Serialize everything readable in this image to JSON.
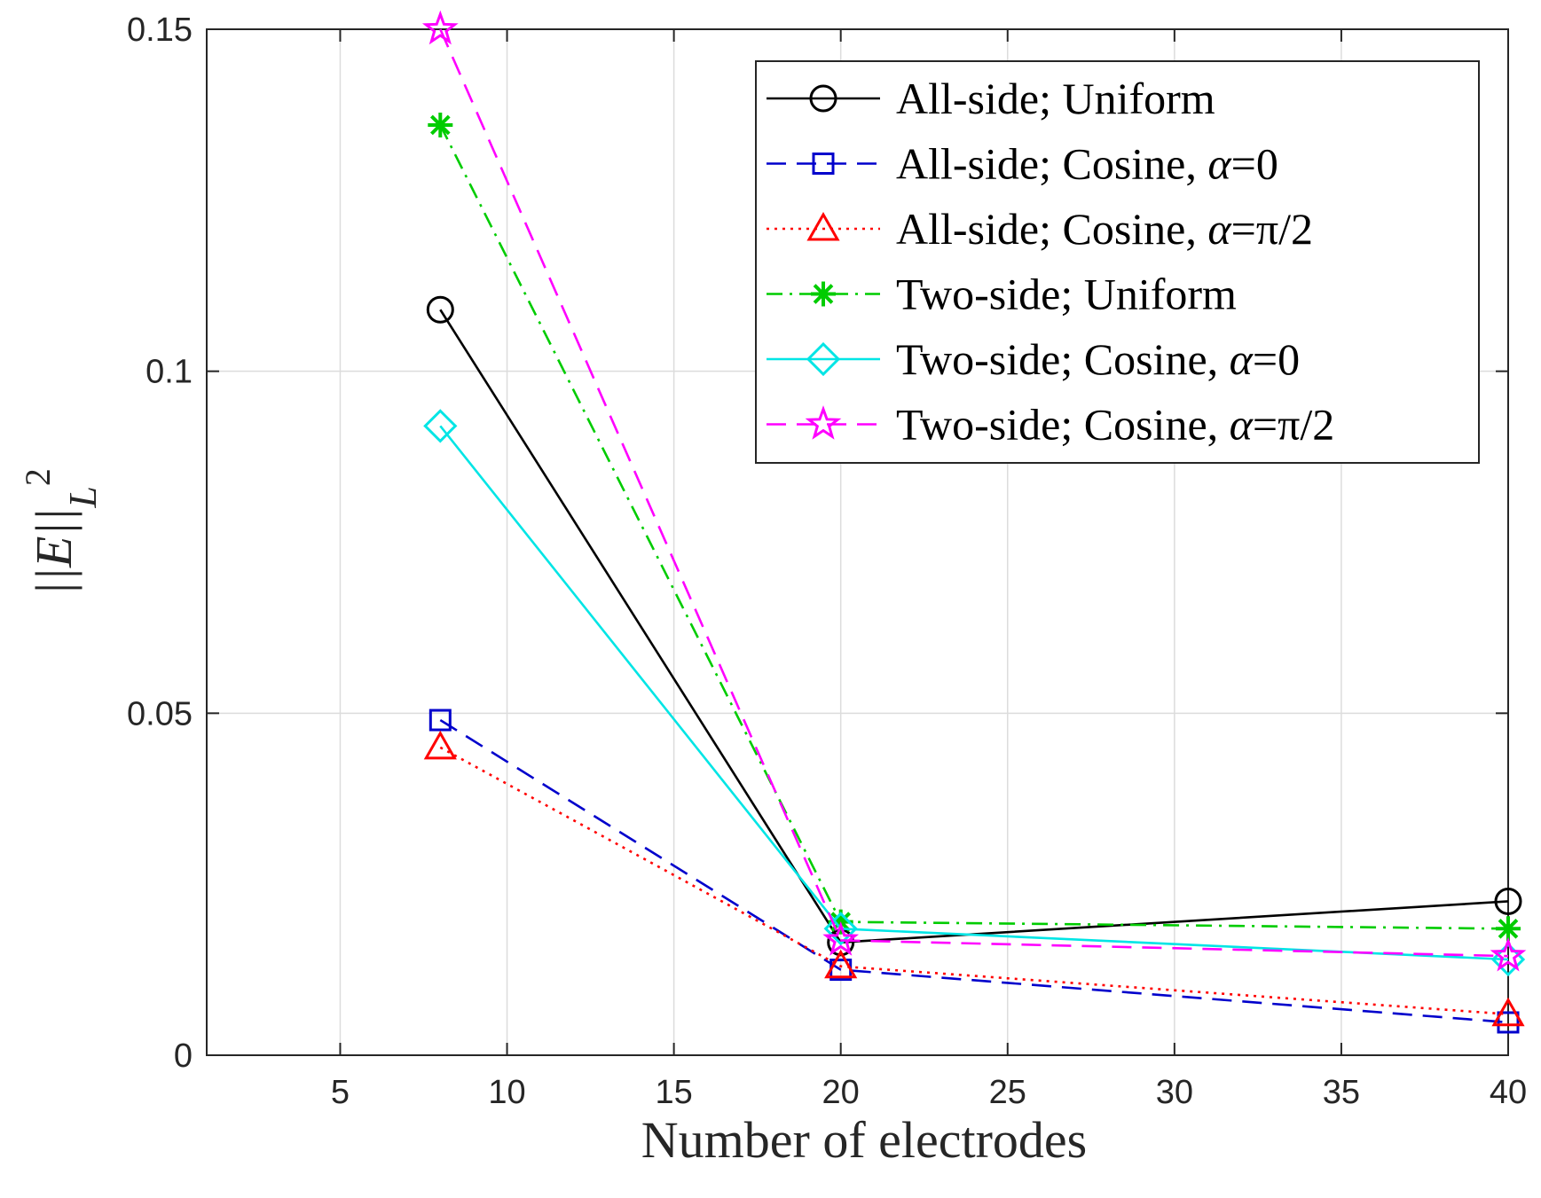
{
  "chart_data": {
    "type": "line",
    "title": "",
    "xlabel": "Number of electrodes",
    "ylabel_parts": {
      "norm": "||E||",
      "sub": "L",
      "sup": "2"
    },
    "xlim": [
      1,
      40
    ],
    "ylim": [
      0,
      0.15
    ],
    "xticks": [
      5,
      10,
      15,
      20,
      25,
      30,
      35,
      40
    ],
    "xtick_labels": [
      "5",
      "10",
      "15",
      "20",
      "25",
      "30",
      "35",
      "40"
    ],
    "yticks": [
      0,
      0.05,
      0.1,
      0.15
    ],
    "ytick_labels": [
      "0",
      "0.05",
      "0.1",
      "0.15"
    ],
    "grid": true,
    "legend_position": "top-right",
    "x": [
      8,
      20,
      40
    ],
    "series": [
      {
        "name": "All-side; Uniform",
        "name_main": "All-side; Uniform",
        "name_sym": "",
        "name_val": "",
        "color": "#000000",
        "dash": "solid",
        "marker": "circle",
        "values": [
          0.109,
          0.0165,
          0.0225
        ]
      },
      {
        "name": "All-side; Cosine, α=0",
        "name_main": "All-side; Cosine, ",
        "name_sym": "α",
        "name_val": "=0",
        "color": "#0000cc",
        "dash": "dashed",
        "marker": "square",
        "values": [
          0.049,
          0.0125,
          0.0048
        ]
      },
      {
        "name": "All-side; Cosine, α=π/2",
        "name_main": "All-side; Cosine, ",
        "name_sym": "α",
        "name_val": "=π/2",
        "color": "#ff0000",
        "dash": "dotted",
        "marker": "triangle",
        "values": [
          0.045,
          0.013,
          0.006
        ]
      },
      {
        "name": "Two-side; Uniform",
        "name_main": "Two-side; Uniform",
        "name_sym": "",
        "name_val": "",
        "color": "#00cc00",
        "dash": "dashdot",
        "marker": "asterisk",
        "values": [
          0.136,
          0.0195,
          0.0185
        ]
      },
      {
        "name": "Two-side; Cosine, α=0",
        "name_main": "Two-side; Cosine, ",
        "name_sym": "α",
        "name_val": "=0",
        "color": "#00e5e5",
        "dash": "solid",
        "marker": "diamond",
        "values": [
          0.092,
          0.0185,
          0.014
        ]
      },
      {
        "name": "Two-side; Cosine, α=π/2",
        "name_main": "Two-side; Cosine, ",
        "name_sym": "α",
        "name_val": "=π/2",
        "color": "#ff00ff",
        "dash": "dashed",
        "marker": "star",
        "values": [
          0.15,
          0.0168,
          0.0145
        ]
      }
    ]
  }
}
